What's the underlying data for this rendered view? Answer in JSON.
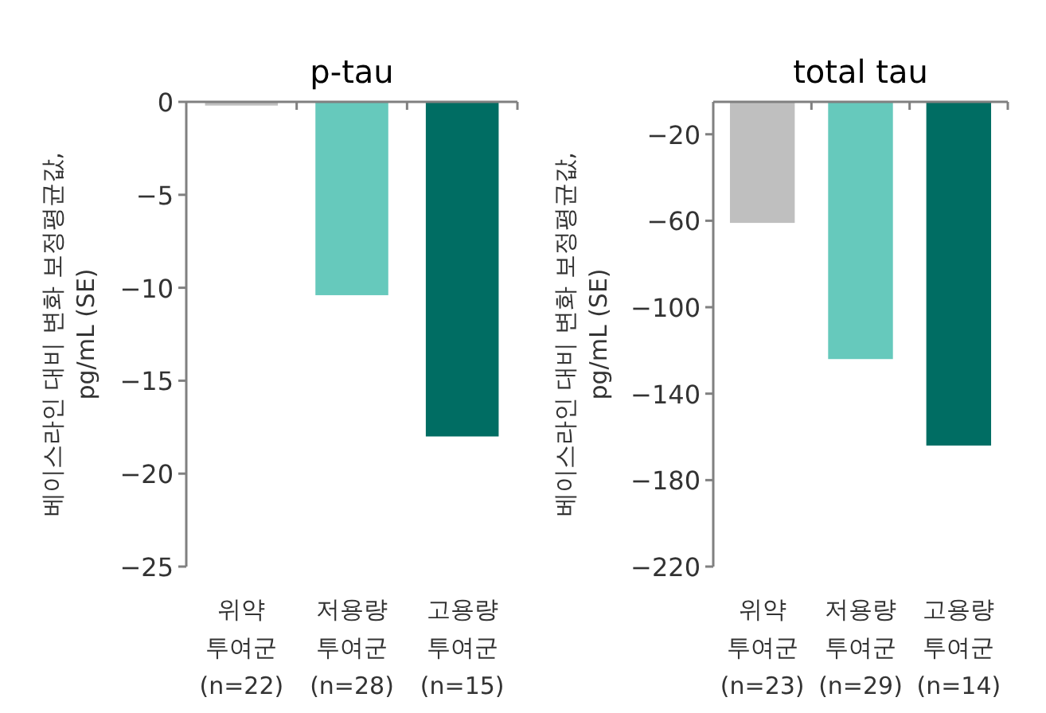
{
  "chart_data": [
    {
      "type": "bar",
      "title": "p-tau",
      "ylabel": "베이스라인 대비 변화 보정평균값,\npg/mL (SE)",
      "categories": [
        "위약\n투여군\n(n=22)",
        "저용량\n투여군\n(n=28)",
        "고용량\n투여군\n(n=15)"
      ],
      "values": [
        -0.2,
        -10.4,
        -18.0
      ],
      "colors": [
        "#bfbfbf",
        "#66c9bc",
        "#006d63"
      ],
      "ylim": [
        -25,
        0
      ],
      "yticks": [
        0,
        -5,
        -10,
        -15,
        -20,
        -25
      ]
    },
    {
      "type": "bar",
      "title": "total tau",
      "ylabel": "베이스라인 대비 변화 보정평균값,\npg/mL (SE)",
      "categories": [
        "위약\n투여군\n(n=23)",
        "저용량\n투여군\n(n=29)",
        "고용량\n투여군\n(n=14)"
      ],
      "values": [
        -61,
        -124,
        -164
      ],
      "colors": [
        "#bfbfbf",
        "#66c9bc",
        "#006d63"
      ],
      "ylim": [
        -220,
        -5
      ],
      "yticks": [
        -20,
        -60,
        -100,
        -140,
        -180,
        -220
      ]
    }
  ]
}
